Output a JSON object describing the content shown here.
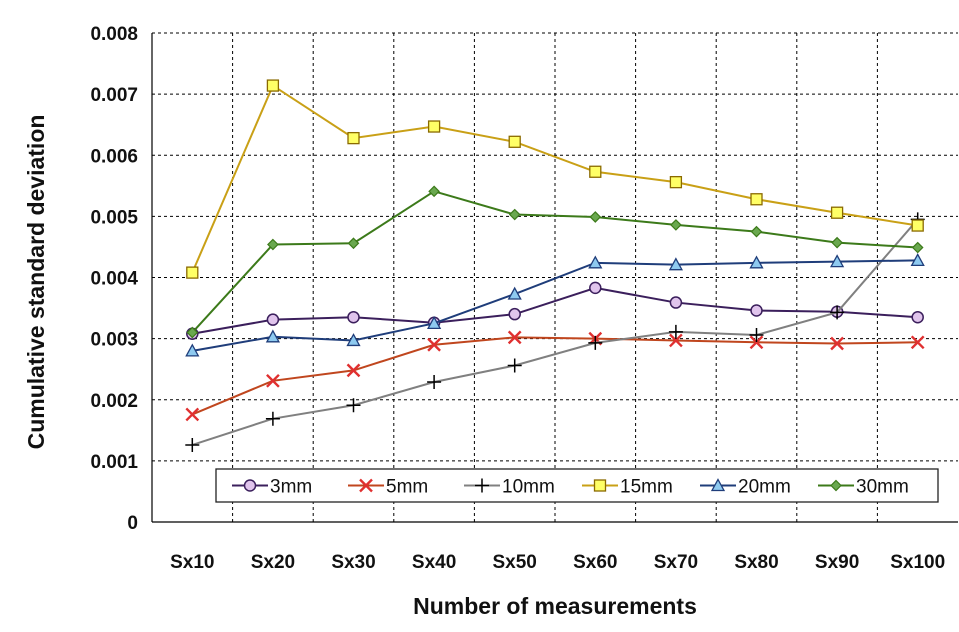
{
  "chart_data": {
    "type": "line",
    "categories": [
      "Sx10",
      "Sx20",
      "Sx30",
      "Sx40",
      "Sx50",
      "Sx60",
      "Sx70",
      "Sx80",
      "Sx90",
      "Sx100"
    ],
    "xlabel": "Number of measurements",
    "ylabel": "Cumulative standard deviation",
    "ylim": [
      0,
      0.008
    ],
    "yticks": [
      "0",
      "0.001",
      "0.002",
      "0.003",
      "0.004",
      "0.005",
      "0.006",
      "0.007",
      "0.008"
    ],
    "grid": true,
    "legend_position": "bottom inside plot, single row",
    "series": [
      {
        "name": "3mm",
        "color": "#3b1f5c",
        "marker": "circle",
        "fill": "#e0c4ec",
        "values": [
          0.00308,
          0.00331,
          0.00335,
          0.00326,
          0.0034,
          0.00383,
          0.00359,
          0.00346,
          0.00344,
          0.00335
        ]
      },
      {
        "name": "5mm",
        "color": "#c0461e",
        "marker": "x",
        "fill": "#e03030",
        "values": [
          0.00176,
          0.00231,
          0.00248,
          0.0029,
          0.00302,
          0.003,
          0.00297,
          0.00294,
          0.00292,
          0.00294
        ]
      },
      {
        "name": "10mm",
        "color": "#808080",
        "marker": "plus",
        "fill": "#000000",
        "values": [
          0.00126,
          0.00169,
          0.00191,
          0.00229,
          0.00256,
          0.00293,
          0.00311,
          0.00306,
          0.00343,
          0.00495
        ]
      },
      {
        "name": "15mm",
        "color": "#c9a016",
        "marker": "square",
        "fill": "#ffff66",
        "values": [
          0.00408,
          0.00714,
          0.00628,
          0.00647,
          0.00622,
          0.00573,
          0.00556,
          0.00528,
          0.00506,
          0.00485
        ]
      },
      {
        "name": "20mm",
        "color": "#1f3d7a",
        "marker": "triangle",
        "fill": "#8ecaf0",
        "values": [
          0.0028,
          0.00303,
          0.00297,
          0.00325,
          0.00373,
          0.00424,
          0.00421,
          0.00424,
          0.00426,
          0.00428
        ]
      },
      {
        "name": "30mm",
        "color": "#3c7a1a",
        "marker": "diamond",
        "fill": "#6aa84f",
        "values": [
          0.0031,
          0.00454,
          0.00456,
          0.00541,
          0.00503,
          0.00499,
          0.00486,
          0.00475,
          0.00457,
          0.00449
        ]
      }
    ]
  }
}
